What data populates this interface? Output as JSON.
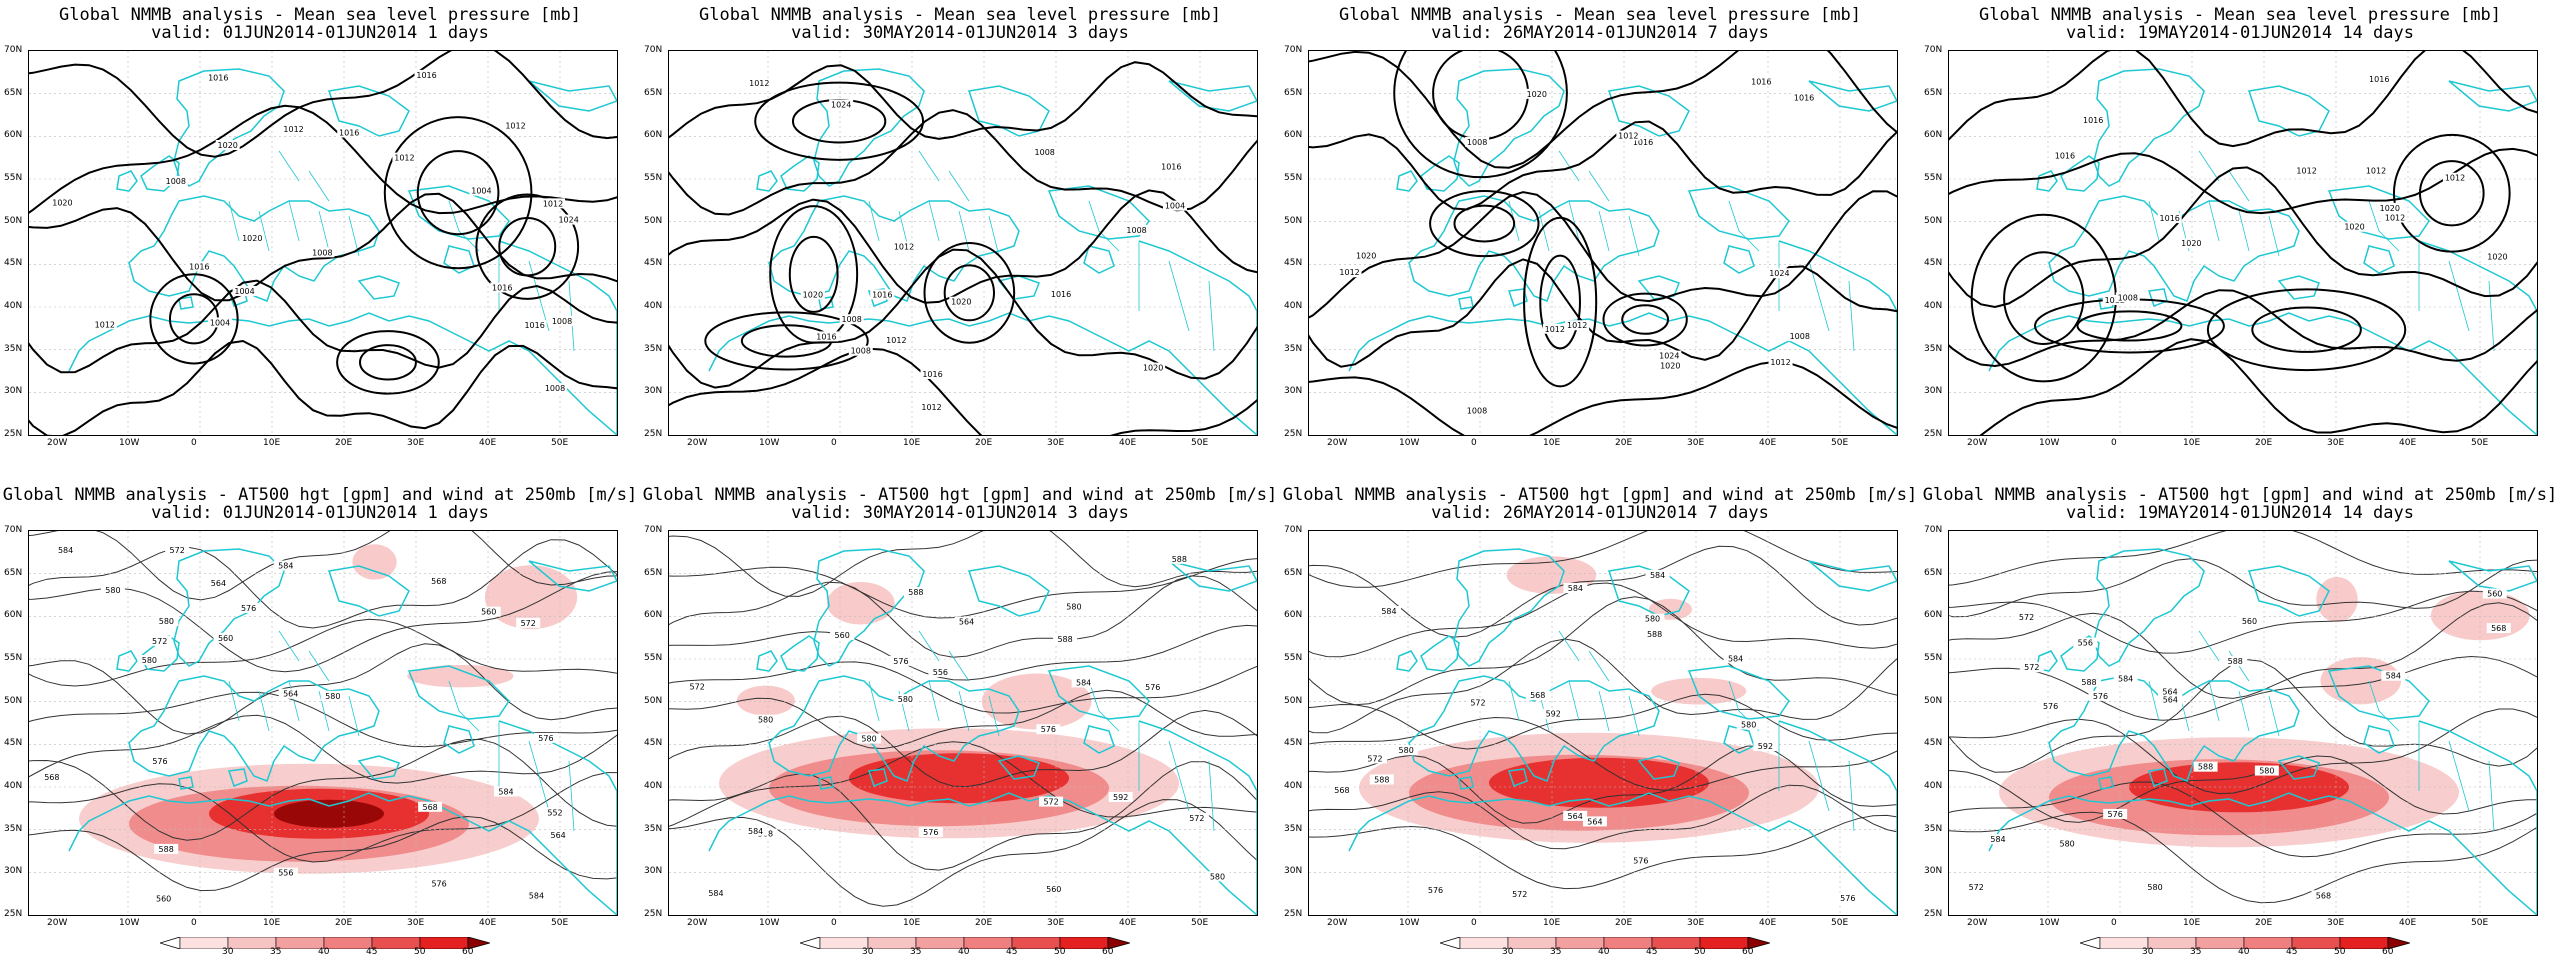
{
  "panels": [
    {
      "id": "p1",
      "title_line1": "Global NMMB analysis - Mean sea level pressure [mb]",
      "title_line2": "valid: 01JUN2014-01JUN2014  1 days",
      "field": "mslp",
      "labels": [
        "1020",
        "1012",
        "1012",
        "1024",
        "1020",
        "1008",
        "1004",
        "1016",
        "1016",
        "1012",
        "1008",
        "1016",
        "1004",
        "1004",
        "1012",
        "1008",
        "1016",
        "1020",
        "1016",
        "1012",
        "1008",
        "1016"
      ]
    },
    {
      "id": "p2",
      "title_line1": "Global NMMB analysis - Mean sea level pressure [mb]",
      "title_line2": "valid: 30MAY2014-01JUN2014  3 days",
      "field": "mslp",
      "labels": [
        "1016",
        "1024",
        "1020",
        "1012",
        "1020",
        "1016",
        "1008",
        "1012",
        "1008",
        "1016",
        "1016",
        "1020",
        "1012",
        "1012",
        "1008",
        "1016",
        "1008",
        "1004"
      ]
    },
    {
      "id": "p3",
      "title_line1": "Global NMMB analysis - Mean sea level pressure [mb]",
      "title_line2": "valid: 26MAY2014-01JUN2014  7 days",
      "field": "mslp",
      "labels": [
        "1020",
        "1024",
        "1016",
        "1024",
        "1020",
        "1012",
        "1008",
        "1020",
        "1012",
        "1012",
        "1008",
        "1016",
        "1012",
        "1016",
        "1012",
        "1008"
      ]
    },
    {
      "id": "p4",
      "title_line1": "Global NMMB analysis - Mean sea level pressure [mb]",
      "title_line2": "valid: 19MAY2014-01JUN2014  14 days",
      "field": "mslp",
      "labels": [
        "1020",
        "1020",
        "1016",
        "1012",
        "1016",
        "1020",
        "1016",
        "1012",
        "1016",
        "1012",
        "1008",
        "1012",
        "1012",
        "1020"
      ]
    },
    {
      "id": "p5",
      "title_line1": "Global NMMB analysis - AT500 hgt [gpm] and wind at 250mb [m/s]",
      "title_line2": "valid: 01JUN2014-01JUN2014  1 days",
      "field": "hgt",
      "labels": [
        "556",
        "560",
        "564",
        "568",
        "572",
        "576",
        "580",
        "584",
        "552",
        "560",
        "564",
        "576",
        "580",
        "584",
        "568",
        "572",
        "576",
        "580",
        "584",
        "588",
        "560",
        "564",
        "568",
        "572",
        "576",
        "580",
        "584"
      ]
    },
    {
      "id": "p6",
      "title_line1": "Global NMMB analysis - AT500 hgt [gpm] and wind at 250mb [m/s]",
      "title_line2": "valid: 30MAY2014-01JUN2014  3 days",
      "field": "hgt",
      "labels": [
        "556",
        "560",
        "564",
        "568",
        "572",
        "576",
        "580",
        "584",
        "588",
        "592",
        "580",
        "572",
        "576",
        "580",
        "584",
        "588",
        "576",
        "580",
        "584",
        "588",
        "560",
        "572",
        "576",
        "580"
      ]
    },
    {
      "id": "p7",
      "title_line1": "Global NMMB analysis - AT500 hgt [gpm] and wind at 250mb [m/s]",
      "title_line2": "valid: 26MAY2014-01JUN2014  7 days",
      "field": "hgt",
      "labels": [
        "564",
        "568",
        "572",
        "576",
        "580",
        "584",
        "588",
        "592",
        "564",
        "568",
        "572",
        "576",
        "580",
        "584",
        "584",
        "588",
        "592",
        "572",
        "576",
        "580",
        "584"
      ]
    },
    {
      "id": "p8",
      "title_line1": "Global NMMB analysis - AT500 hgt [gpm] and wind at 250mb [m/s]",
      "title_line2": "valid: 19MAY2014-01JUN2014  14 days",
      "field": "hgt",
      "labels": [
        "560",
        "564",
        "568",
        "572",
        "576",
        "580",
        "584",
        "588",
        "556",
        "560",
        "564",
        "568",
        "572",
        "576",
        "580",
        "584",
        "588",
        "576",
        "580",
        "584",
        "588",
        "572"
      ]
    }
  ],
  "lat_ticks": [
    "70N",
    "65N",
    "60N",
    "55N",
    "50N",
    "45N",
    "40N",
    "35N",
    "30N",
    "25N"
  ],
  "lon_ticks": [
    "20W",
    "10W",
    "0",
    "10E",
    "20E",
    "30E",
    "40E",
    "50E"
  ],
  "colorbar_labels": [
    "30",
    "35",
    "40",
    "45",
    "50",
    "60"
  ],
  "colors": {
    "coast": "#1ec8d2",
    "contour": "#000000",
    "jet_light": "#f7c4c4",
    "jet_mid": "#f08080",
    "jet_strong": "#e52020",
    "jet_max": "#8b0000"
  }
}
